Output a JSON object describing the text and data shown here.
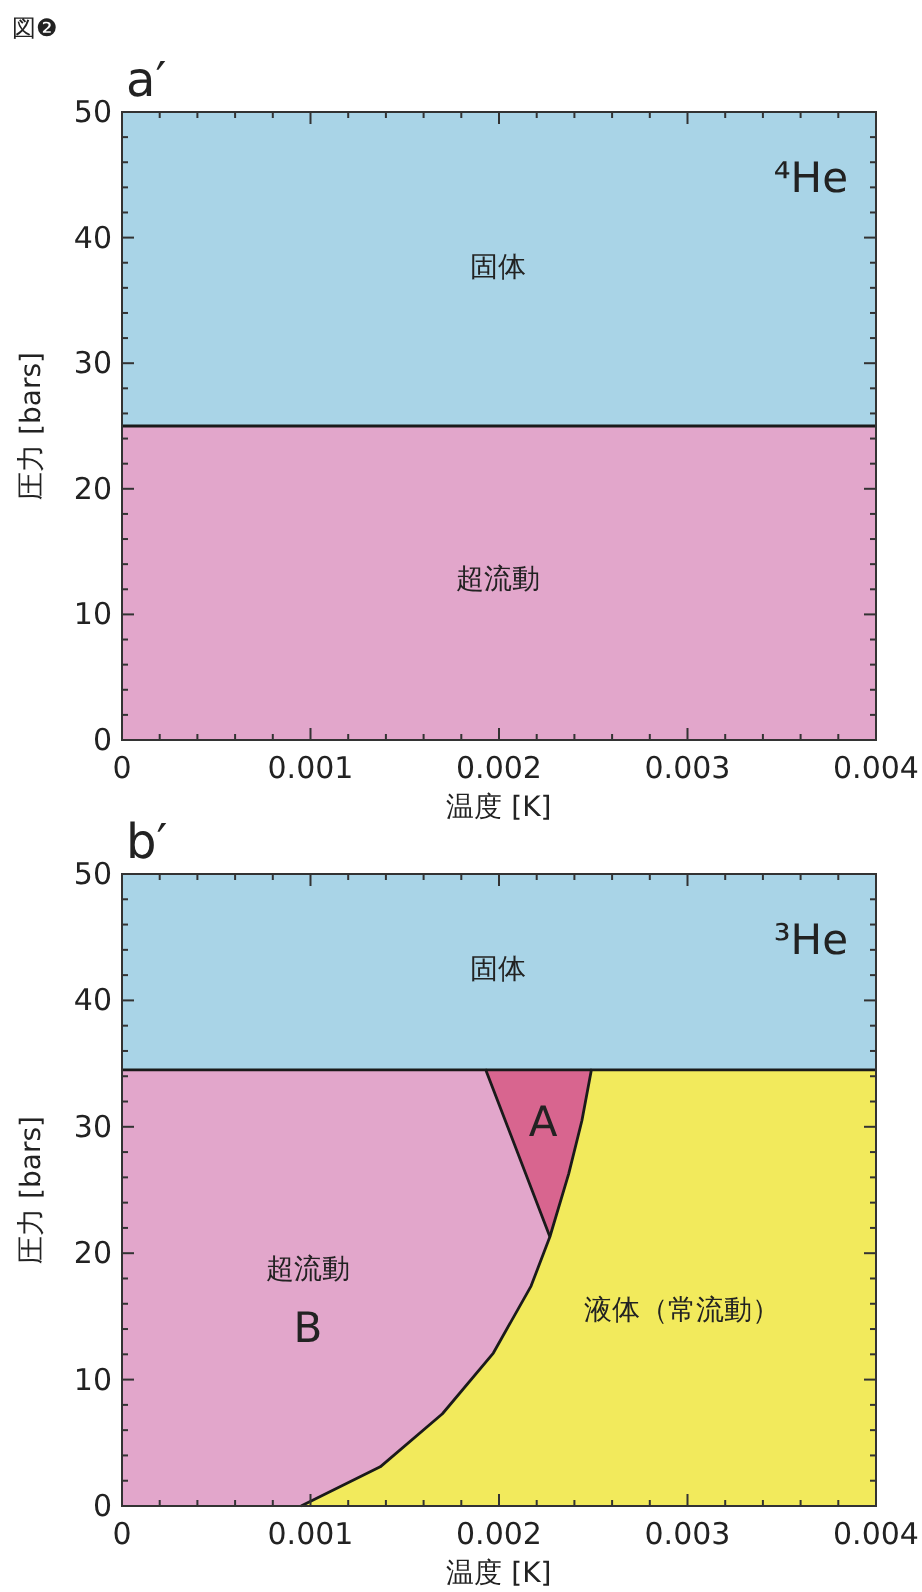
{
  "chart_data": [
    {
      "type": "area",
      "title": "a′",
      "subtitle": "⁴He",
      "xlabel": "温度 [K]",
      "ylabel": "圧力 [bars]",
      "xlim": [
        0,
        0.004
      ],
      "ylim": [
        0,
        50
      ],
      "xticks": [
        0,
        {
          "value": 0.0002,
          "label": null
        },
        {
          "value": 0.0004,
          "label": null
        },
        {
          "value": 0.0006,
          "label": null
        },
        {
          "value": 0.0008,
          "label": null
        },
        0.001,
        {
          "value": 0.0012,
          "label": null
        },
        {
          "value": 0.0014,
          "label": null
        },
        {
          "value": 0.0016,
          "label": null
        },
        {
          "value": 0.0018,
          "label": null
        },
        0.002,
        {
          "value": 0.0022,
          "label": null
        },
        {
          "value": 0.0024,
          "label": null
        },
        {
          "value": 0.0026,
          "label": null
        },
        {
          "value": 0.0028,
          "label": null
        },
        0.003,
        {
          "value": 0.0032,
          "label": null
        },
        {
          "value": 0.0034,
          "label": null
        },
        {
          "value": 0.0036,
          "label": null
        },
        {
          "value": 0.0038,
          "label": null
        },
        0.004
      ],
      "yticks": [
        0,
        {
          "value": 2,
          "label": null
        },
        {
          "value": 4,
          "label": null
        },
        {
          "value": 6,
          "label": null
        },
        {
          "value": 8,
          "label": null
        },
        10,
        {
          "value": 12,
          "label": null
        },
        {
          "value": 14,
          "label": null
        },
        {
          "value": 16,
          "label": null
        },
        {
          "value": 18,
          "label": null
        },
        20,
        {
          "value": 22,
          "label": null
        },
        {
          "value": 24,
          "label": null
        },
        {
          "value": 26,
          "label": null
        },
        {
          "value": 28,
          "label": null
        },
        30,
        {
          "value": 32,
          "label": null
        },
        {
          "value": 34,
          "label": null
        },
        {
          "value": 36,
          "label": null
        },
        {
          "value": 38,
          "label": null
        },
        40,
        {
          "value": 42,
          "label": null
        },
        {
          "value": 44,
          "label": null
        },
        {
          "value": 46,
          "label": null
        },
        {
          "value": 48,
          "label": null
        },
        50
      ],
      "series": [
        {
          "type": "area",
          "name": "固体",
          "color": "#a9d4e7",
          "x": [
            0,
            0.004
          ],
          "values": [
            50,
            50
          ]
        },
        {
          "type": "area",
          "name": "超流動",
          "color": "#e2a6cb",
          "x": [
            0,
            0.004
          ],
          "values": [
            25,
            25
          ]
        }
      ],
      "annotations": [
        "図❷"
      ]
    },
    {
      "type": "area",
      "title": "b′",
      "subtitle": "³He",
      "xlabel": "温度 [K]",
      "ylabel": "圧力 [bars]",
      "xlim": [
        0,
        0.004
      ],
      "ylim": [
        0,
        50
      ],
      "xticks": [
        0,
        {
          "value": 0.0002,
          "label": null
        },
        {
          "value": 0.0004,
          "label": null
        },
        {
          "value": 0.0006,
          "label": null
        },
        {
          "value": 0.0008,
          "label": null
        },
        0.001,
        {
          "value": 0.0012,
          "label": null
        },
        {
          "value": 0.0014,
          "label": null
        },
        {
          "value": 0.0016,
          "label": null
        },
        {
          "value": 0.0018,
          "label": null
        },
        0.002,
        {
          "value": 0.0022,
          "label": null
        },
        {
          "value": 0.0024,
          "label": null
        },
        {
          "value": 0.0026,
          "label": null
        },
        {
          "value": 0.0028,
          "label": null
        },
        0.003,
        {
          "value": 0.0032,
          "label": null
        },
        {
          "value": 0.0034,
          "label": null
        },
        {
          "value": 0.0036,
          "label": null
        },
        {
          "value": 0.0038,
          "label": null
        },
        0.004
      ],
      "yticks": [
        0,
        {
          "value": 2,
          "label": null
        },
        {
          "value": 4,
          "label": null
        },
        {
          "value": 6,
          "label": null
        },
        {
          "value": 8,
          "label": null
        },
        10,
        {
          "value": 12,
          "label": null
        },
        {
          "value": 14,
          "label": null
        },
        {
          "value": 16,
          "label": null
        },
        {
          "value": 18,
          "label": null
        },
        20,
        {
          "value": 22,
          "label": null
        },
        {
          "value": 24,
          "label": null
        },
        {
          "value": 26,
          "label": null
        },
        {
          "value": 28,
          "label": null
        },
        30,
        {
          "value": 32,
          "label": null
        },
        {
          "value": 34,
          "label": null
        },
        {
          "value": 36,
          "label": null
        },
        {
          "value": 38,
          "label": null
        },
        40,
        {
          "value": 42,
          "label": null
        },
        {
          "value": 44,
          "label": null
        },
        {
          "value": 46,
          "label": null
        },
        {
          "value": 48,
          "label": null
        },
        50
      ],
      "series": [
        {
          "type": "area",
          "name": "固体",
          "color": "#a9d4e7",
          "x": [
            0,
            0.004
          ],
          "values": [
            50,
            50
          ]
        },
        {
          "type": "area",
          "name": "A",
          "color": "#d8658f",
          "x": [
            0.00193,
            0.00249
          ],
          "values": [
            34.5,
            34.5
          ]
        },
        {
          "type": "area",
          "name": "超流動",
          "color": "#e2a6cb",
          "x": [
            0,
            0.00193,
            0.00227
          ],
          "values": [
            34.5,
            34.5,
            21.3
          ]
        },
        {
          "type": "area",
          "name": "液体（常流動）",
          "color": "#f2ea5c",
          "x": [
            0.00095,
            0.00137,
            0.0017,
            0.00197,
            0.00217,
            0.00227,
            0.00237,
            0.00244,
            0.00249,
            0.004
          ],
          "values": [
            0,
            3.1,
            7.3,
            12.1,
            17.4,
            21.3,
            26.3,
            30.5,
            34.5,
            34.5
          ]
        }
      ],
      "annotations": [
        "B"
      ]
    }
  ]
}
